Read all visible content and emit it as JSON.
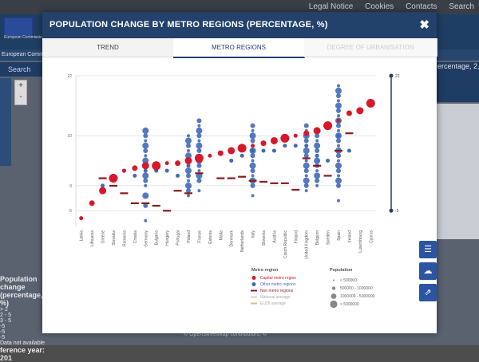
{
  "top_links": [
    "Legal Notice",
    "Cookies",
    "Contacts",
    "Search"
  ],
  "background": {
    "header_logo_text": "European Commission",
    "nav_text": "European Comm",
    "search_label": "Search",
    "right_text": "ercentage, 2.",
    "legend_title": "Population change (percentage, %)",
    "legend_items": [
      "> 2",
      "2 - 5",
      "3 - 5",
      "-5",
      "-5",
      "-5",
      "Data not available"
    ],
    "reference_year": "ference year: 201",
    "footer_text": "© OpenStreetMap contributors, ©"
  },
  "modal": {
    "title": "POPULATION CHANGE BY METRO REGIONS (PERCENTAGE, %)",
    "close_label": "✖"
  },
  "tabs": [
    {
      "label": "TREND",
      "active": false,
      "disabled": false
    },
    {
      "label": "METRO REGIONS",
      "active": true,
      "disabled": false
    },
    {
      "label": "DEGREE OF URBANISATION",
      "active": false,
      "disabled": true
    }
  ],
  "legend": {
    "metro_title": "Metro region",
    "capital": "Capital metro region",
    "other": "Other metro regions",
    "non_metro": "Non metro regions",
    "national": "National average",
    "eu": "EU28 average",
    "pop_title": "Population",
    "pop_classes": [
      "< 500000",
      "500000 - 1000000",
      "1000000 - 5000000",
      "> 5000000"
    ]
  },
  "colors": {
    "capital": "#d7182a",
    "other": "#4169b8",
    "nonmetro": "#8b1a1a",
    "navy": "#23416b",
    "grid": "#e6e6e6"
  },
  "icons": [
    "list-icon",
    "cloud-download-icon",
    "share-icon"
  ],
  "chart_data": {
    "type": "scatter",
    "ylim": [
      -8,
      22
    ],
    "yticks": [
      -5,
      0,
      10,
      22
    ],
    "categories": [
      "Latvia",
      "Lithuania",
      "Greece",
      "Slovakia",
      "Romania",
      "Croatia",
      "Germany",
      "Bulgaria",
      "Hungary",
      "Portugal",
      "Poland",
      "France",
      "Estonia",
      "Malta",
      "Denmark",
      "Netherlands",
      "Italy",
      "Slovenia",
      "Austria",
      "Czech Republic",
      "Finland",
      "United Kingdom",
      "Belgium",
      "Sweden",
      "Spain",
      "Ireland",
      "Luxembourg",
      "Cyprus"
    ],
    "series": [
      {
        "name": "Capital metro region",
        "values": [
          -6.5,
          -3.5,
          -1,
          1.5,
          3,
          3.5,
          4,
          4,
          4.5,
          4.5,
          5,
          5.5,
          6,
          6.5,
          7,
          7.5,
          8,
          8.5,
          9,
          9.5,
          10,
          10.5,
          11,
          12,
          13,
          14.5,
          15,
          16.5
        ]
      },
      {
        "name": "Other metro regions",
        "values": [
          null,
          null,
          0,
          2,
          3,
          2,
          3,
          3,
          3,
          2,
          4,
          5,
          null,
          null,
          5,
          6,
          7,
          7,
          7,
          8,
          8,
          8,
          6,
          5,
          10,
          7,
          null,
          null
        ]
      },
      {
        "name": "Non metro regions",
        "values": [
          null,
          null,
          1.5,
          0,
          -1.5,
          -3.5,
          -3.5,
          -4,
          -5,
          -1,
          -1.5,
          2.5,
          null,
          1.5,
          1.5,
          1.8,
          1,
          0.8,
          0.5,
          0.5,
          -0.8,
          5.5,
          4,
          2,
          7,
          10.5,
          null,
          null
        ]
      }
    ],
    "extra_points": {
      "France": [
        -1,
        1,
        2,
        3,
        4,
        5,
        6,
        7,
        8,
        9,
        10,
        11,
        12,
        13
      ],
      "Spain": [
        -3,
        0,
        1,
        2,
        3,
        4,
        5,
        6,
        7,
        8,
        9,
        10,
        11,
        12,
        13,
        14,
        15,
        16,
        17,
        18,
        19,
        20
      ],
      "United Kingdom": [
        -1,
        0,
        1,
        2,
        3,
        4,
        5,
        6,
        7,
        8,
        9,
        10,
        11,
        12
      ],
      "Germany": [
        -7,
        -4,
        -2,
        0,
        1,
        2,
        3,
        4,
        5,
        6,
        7,
        8,
        9,
        10,
        11
      ],
      "Italy": [
        -2,
        0,
        1,
        2,
        3,
        4,
        5,
        6,
        7,
        8,
        9,
        10,
        11,
        12
      ],
      "Belgium": [
        0,
        1,
        2,
        3,
        4,
        5,
        6,
        7,
        8,
        9,
        10
      ],
      "Poland": [
        -2,
        -1,
        0,
        1,
        2,
        3,
        4,
        5,
        6,
        7,
        8,
        9,
        10
      ]
    },
    "right_axis_labels": [
      "22",
      "-5"
    ]
  }
}
